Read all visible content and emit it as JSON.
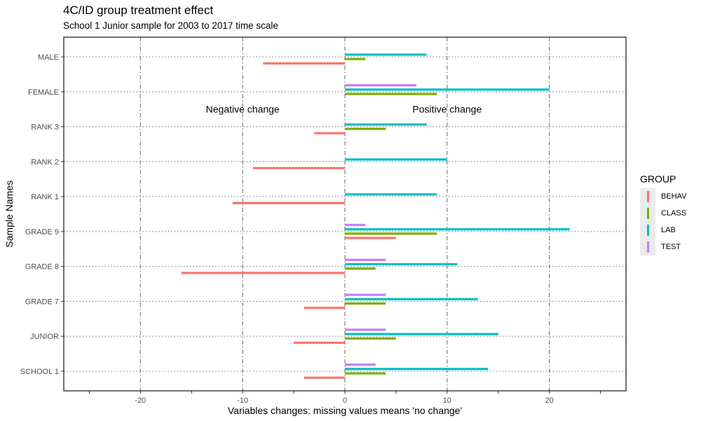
{
  "title": "4C/ID group treatment effect",
  "subtitle": "School 1 Junior sample for 2003 to 2017 time scale",
  "chart_data": {
    "type": "bar",
    "orientation": "horizontal",
    "xlabel": "Variables changes: missing values means 'no change'",
    "ylabel": "Sample Names",
    "xlim": [
      -27.5,
      27.5
    ],
    "x_ticks": [
      -20,
      -10,
      0,
      10,
      20
    ],
    "x_tick_labels": [
      "-20",
      "-10",
      "0",
      "10",
      "20"
    ],
    "categories": [
      "SCHOOL 1",
      "JUNIOR",
      "GRADE 7",
      "GRADE 8",
      "GRADE 9",
      "RANK 1",
      "RANK 2",
      "RANK 3",
      "FEMALE",
      "MALE"
    ],
    "series": [
      {
        "name": "BEHAV",
        "color": "#F8766D",
        "values": [
          -4,
          -5,
          -4,
          -16,
          5,
          -11,
          -9,
          -3,
          null,
          -8
        ]
      },
      {
        "name": "CLASS",
        "color": "#7CAE00",
        "values": [
          4,
          5,
          4,
          3,
          9,
          null,
          null,
          4,
          9,
          2
        ]
      },
      {
        "name": "LAB",
        "color": "#00BFC4",
        "values": [
          14,
          15,
          13,
          11,
          22,
          9,
          10,
          8,
          20,
          8
        ]
      },
      {
        "name": "TEST",
        "color": "#C77CFF",
        "values": [
          3,
          4,
          4,
          4,
          2,
          null,
          null,
          null,
          7,
          null
        ]
      }
    ],
    "annotations": [
      {
        "text": "Negative change",
        "x": -10,
        "y": "FEMALE/RANK 3"
      },
      {
        "text": "Positive change",
        "x": 10,
        "y": "FEMALE/RANK 3"
      }
    ],
    "grid": true,
    "legend_title": "GROUP",
    "legend_position": "right"
  }
}
